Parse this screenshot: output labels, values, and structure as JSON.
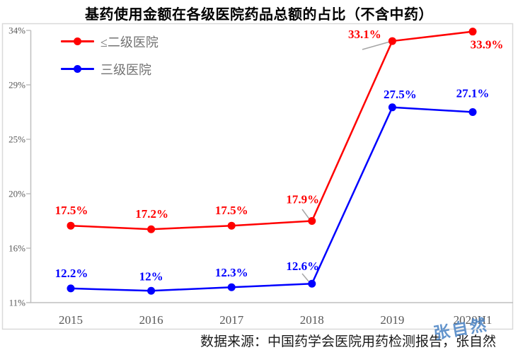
{
  "title": "基药使用金额在各级医院药品总额的占比（不含中药）",
  "footer": {
    "source": "数据来源：中国药学会医院用药检测报告，张自然",
    "watermark": "张自然"
  },
  "legend": {
    "items": [
      {
        "label": "≤二级医院",
        "color": "#FF0000"
      },
      {
        "label": "三级医院",
        "color": "#0000FF"
      }
    ]
  },
  "colors": {
    "series_red": "#FF0000",
    "series_blue": "#0000FF",
    "axis": "#BFBFBF",
    "frame": "#D9D9D9",
    "tick_text": "#595959",
    "leader_line": "#A6A6A6",
    "watermark": "#4E86C6",
    "title_text": "#000000"
  },
  "chart_data": {
    "type": "line",
    "title": "基药使用金额在各级医院药品总额的占比（不含中药）",
    "categories": [
      "2015",
      "2016",
      "2017",
      "2018",
      "2019",
      "2020H1"
    ],
    "series": [
      {
        "name": "≤二级医院",
        "color": "#FF0000",
        "values": [
          17.5,
          17.2,
          17.5,
          17.9,
          33.1,
          33.9
        ],
        "point_labels": [
          "17.5%",
          "17.2%",
          "17.5%",
          "17.9%",
          "33.1%",
          "33.9%"
        ]
      },
      {
        "name": "三级医院",
        "color": "#0000FF",
        "values": [
          12.2,
          12,
          12.3,
          12.6,
          27.5,
          27.1
        ],
        "point_labels": [
          "12.2%",
          "12%",
          "12.3%",
          "12.6%",
          "27.5%",
          "27.1%"
        ]
      }
    ],
    "y_axis": {
      "tick_labels": [
        "34%",
        "29%",
        "25%",
        "20%",
        "16%",
        "11%"
      ],
      "tick_values": [
        34,
        29.4,
        24.8,
        20.2,
        15.6,
        11
      ],
      "min": 11,
      "max": 34
    },
    "grid": false,
    "legend_position": "top-left",
    "source": "数据来源：中国药学会医院用药检测报告，张自然"
  }
}
